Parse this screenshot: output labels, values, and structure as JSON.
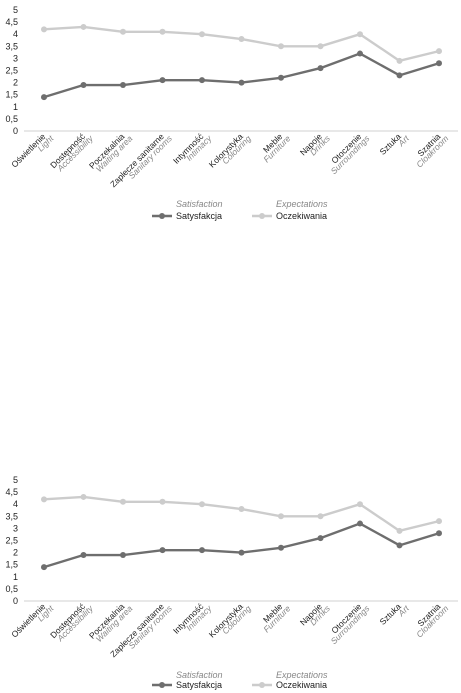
{
  "chart_data": [
    {
      "type": "line",
      "categories": [
        {
          "label": "Oświetlenie",
          "label_en": "Light"
        },
        {
          "label": "Dostępność",
          "label_en": "Accessibility"
        },
        {
          "label": "Poczekalnia",
          "label_en": "Waiting area"
        },
        {
          "label": "Zaplecze sanitarne",
          "label_en": "Sanitary rooms"
        },
        {
          "label": "Intymność",
          "label_en": "Intimacy"
        },
        {
          "label": "Kolorystyka",
          "label_en": "Colouring"
        },
        {
          "label": "Meble",
          "label_en": "Furniture"
        },
        {
          "label": "Napoje",
          "label_en": "Drinks"
        },
        {
          "label": "Otoczenie",
          "label_en": "Surroundings"
        },
        {
          "label": "Sztuka",
          "label_en": "Art"
        },
        {
          "label": "Szatnia",
          "label_en": "Cloakroom"
        }
      ],
      "series": [
        {
          "name": "Satysfakcja",
          "name_en": "Satisfaction",
          "color": "#6e6e6e",
          "values": [
            1.4,
            1.9,
            1.9,
            2.1,
            2.1,
            2.0,
            2.2,
            2.6,
            3.2,
            2.3,
            2.8
          ]
        },
        {
          "name": "Oczekiwania",
          "name_en": "Expectations",
          "color": "#cccccc",
          "values": [
            4.2,
            4.3,
            4.1,
            4.1,
            4.0,
            3.8,
            3.5,
            3.5,
            4.0,
            2.9,
            3.3
          ]
        }
      ],
      "yticks": [
        "0",
        "0,5",
        "1",
        "1,5",
        "2",
        "2,5",
        "3",
        "3,5",
        "4",
        "4,5",
        "5"
      ],
      "ylim": [
        0,
        5
      ],
      "grid": false,
      "legend_position": "bottom"
    },
    {
      "type": "line",
      "categories": [
        {
          "label": "Oświetlenie",
          "label_en": "Light"
        },
        {
          "label": "Dostępność",
          "label_en": "Accessibility"
        },
        {
          "label": "Poczekalnia",
          "label_en": "Waiting area"
        },
        {
          "label": "Zaplecze sanitarne",
          "label_en": "Sanitary rooms"
        },
        {
          "label": "Intymność",
          "label_en": "Intimacy"
        },
        {
          "label": "Kolorystyka",
          "label_en": "Colouring"
        },
        {
          "label": "Meble",
          "label_en": "Furniture"
        },
        {
          "label": "Napoje",
          "label_en": "Drinks"
        },
        {
          "label": "Otoczenie",
          "label_en": "Surroundings"
        },
        {
          "label": "Sztuka",
          "label_en": "Art"
        },
        {
          "label": "Szatnia",
          "label_en": "Cloakroom"
        }
      ],
      "series": [
        {
          "name": "Satysfakcja",
          "name_en": "Satisfaction",
          "color": "#6e6e6e",
          "values": [
            1.4,
            1.9,
            1.9,
            2.1,
            2.1,
            2.0,
            2.2,
            2.6,
            3.2,
            2.3,
            2.8
          ]
        },
        {
          "name": "Oczekiwania",
          "name_en": "Expectations",
          "color": "#cccccc",
          "values": [
            4.2,
            4.3,
            4.1,
            4.1,
            4.0,
            3.8,
            3.5,
            3.5,
            4.0,
            2.9,
            3.3
          ]
        }
      ],
      "yticks": [
        "0",
        "0,5",
        "1",
        "1,5",
        "2",
        "2,5",
        "3",
        "3,5",
        "4",
        "4,5",
        "5"
      ],
      "ylim": [
        0,
        5
      ],
      "grid": false,
      "legend_position": "bottom"
    }
  ]
}
